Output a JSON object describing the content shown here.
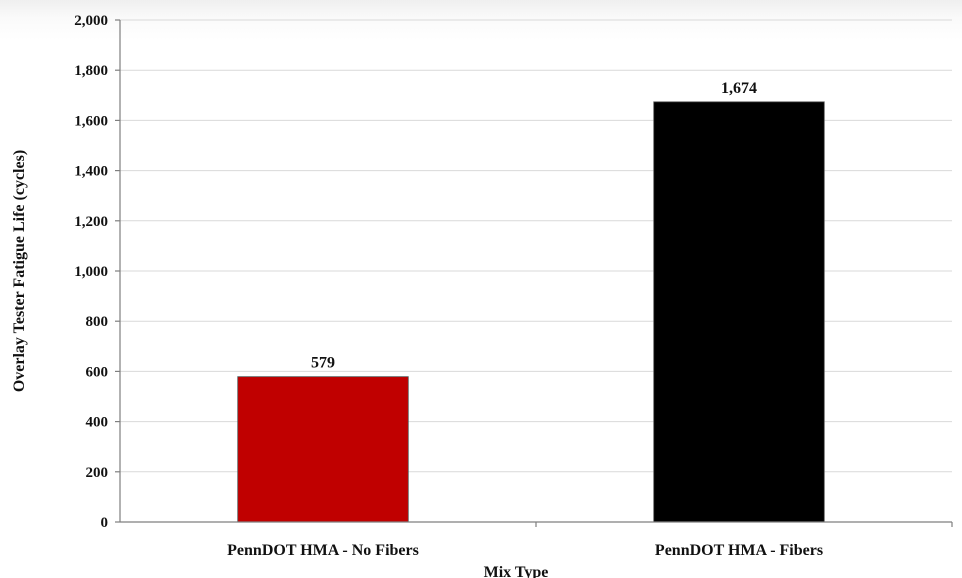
{
  "chart_data": {
    "type": "bar",
    "categories": [
      "PennDOT HMA - No Fibers",
      "PennDOT HMA - Fibers"
    ],
    "values": [
      579,
      1674
    ],
    "data_labels": [
      "579",
      "1,674"
    ],
    "bar_colors": [
      "#c00000",
      "#000000"
    ],
    "title": "",
    "xlabel": "Mix Type",
    "ylabel": "Overlay Tester Fatigue Life (cycles)",
    "ylim": [
      0,
      2000
    ],
    "yticks": [
      0,
      200,
      400,
      600,
      800,
      1000,
      1200,
      1400,
      1600,
      1800,
      2000
    ],
    "ytick_labels": [
      "0",
      "200",
      "400",
      "600",
      "800",
      "1,000",
      "1,200",
      "1,400",
      "1,600",
      "1,800",
      "2,000"
    ],
    "grid": true,
    "legend": "none"
  }
}
